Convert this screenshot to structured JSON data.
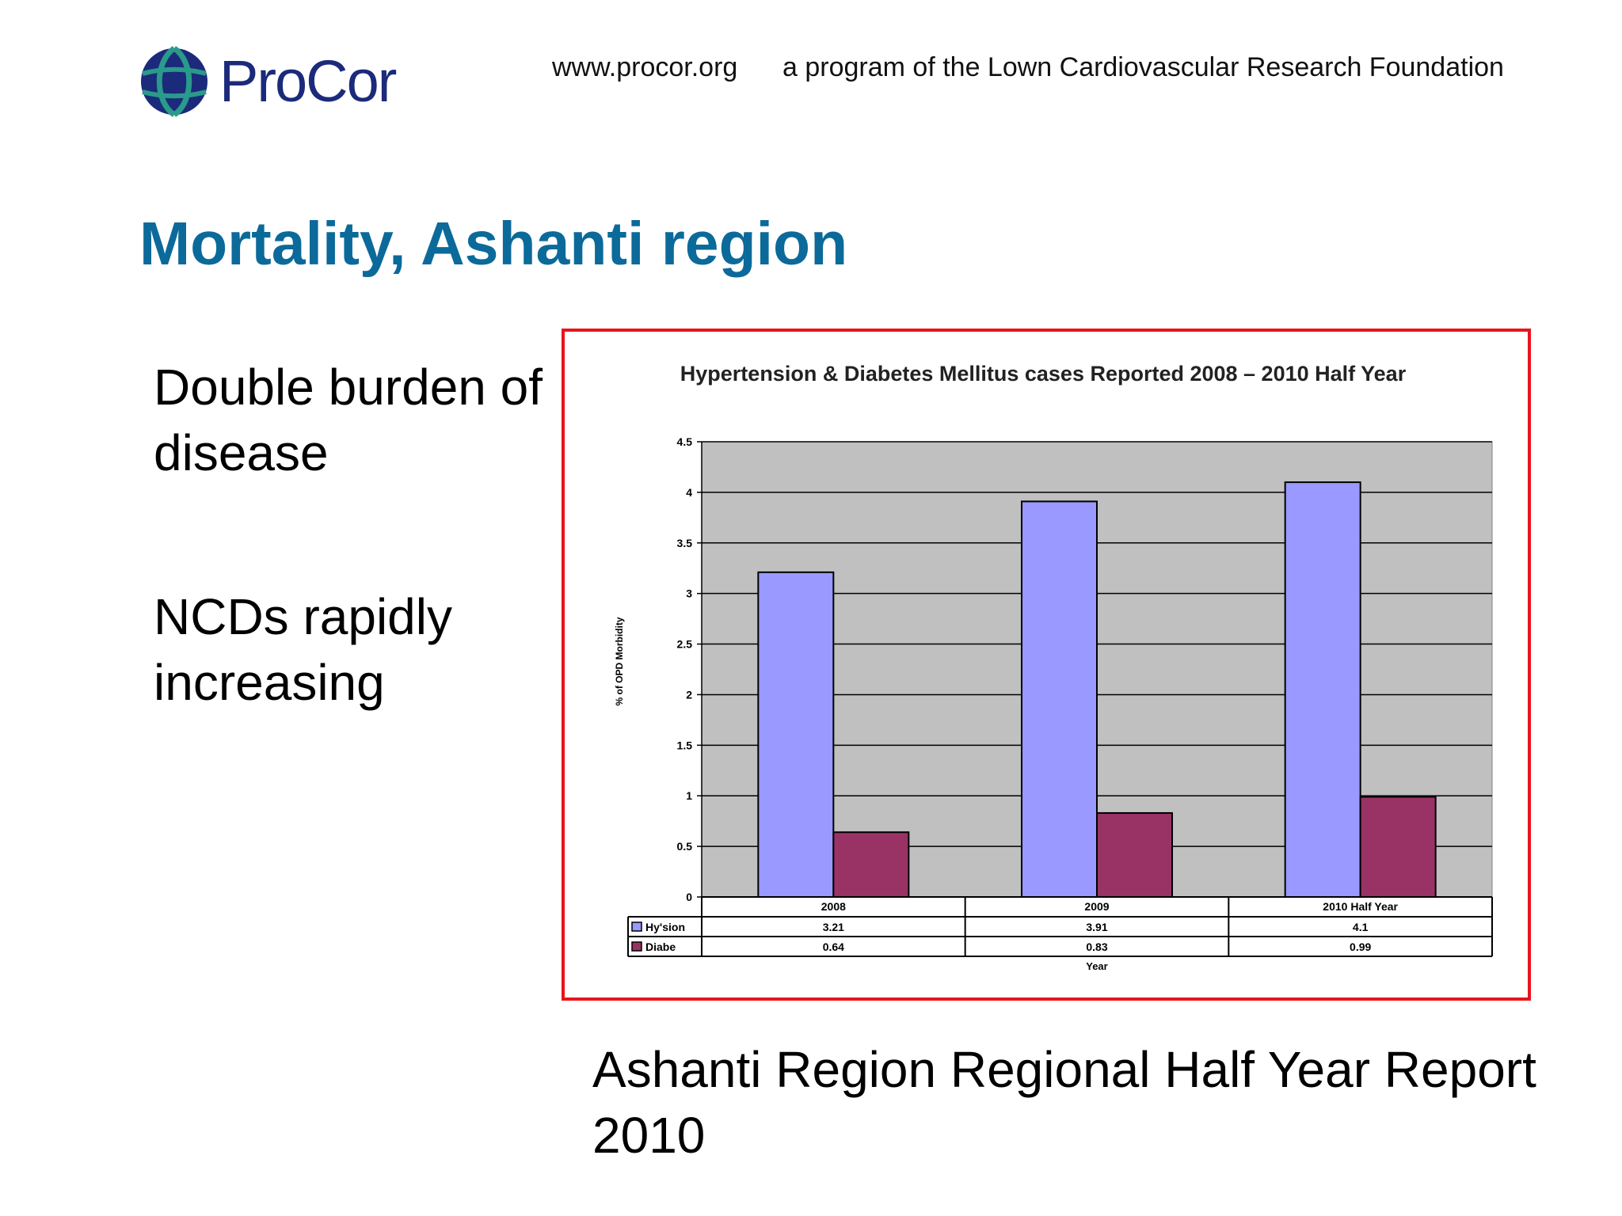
{
  "header": {
    "logo_text": "ProCor",
    "url": "www.procor.org",
    "tagline": "a program of the Lown Cardiovascular Research Foundation"
  },
  "slide": {
    "title": "Mortality, Ashanti region",
    "bullets": [
      "Double burden of disease",
      "NCDs rapidly increasing"
    ],
    "caption": "Ashanti Region Regional Half Year Report 2010"
  },
  "colors": {
    "title": "#0b6a9a",
    "frame": "#e8141b",
    "plot_bg": "#c0c0c0",
    "series_1": "#9999ff",
    "series_2": "#993366"
  },
  "chart_data": {
    "type": "bar",
    "title": "Hypertension & Diabetes Mellitus cases Reported 2008 – 2010 Half Year",
    "xlabel": "Year",
    "ylabel": "% of OPD Morbidity",
    "categories": [
      "2008",
      "2009",
      "2010 Half Year"
    ],
    "series": [
      {
        "name": "Hy'sion",
        "values": [
          3.21,
          3.91,
          4.1
        ],
        "color": "#9999ff"
      },
      {
        "name": "Diabe",
        "values": [
          0.64,
          0.83,
          0.99
        ],
        "color": "#993366"
      }
    ],
    "value_labels": [
      [
        "3.21",
        "3.91",
        "4.1"
      ],
      [
        "0.64",
        "0.83",
        "0.99"
      ]
    ],
    "yticks": [
      "0",
      "0.5",
      "1",
      "1.5",
      "2",
      "2.5",
      "3",
      "3.5",
      "4",
      "4.5"
    ],
    "ylim": [
      0,
      4.5
    ],
    "grid": true,
    "legend": "data-table"
  }
}
